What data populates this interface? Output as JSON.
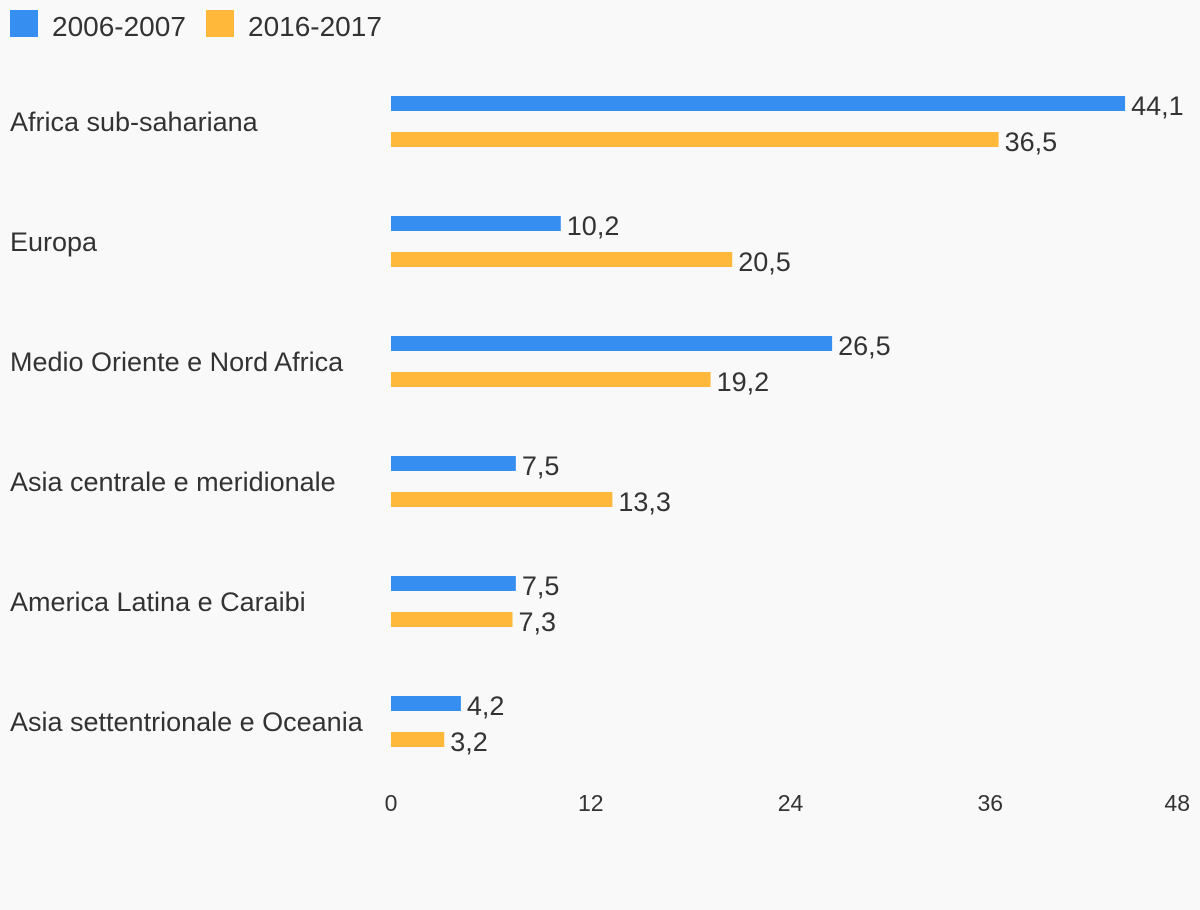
{
  "chart_data": {
    "type": "bar",
    "orientation": "horizontal",
    "title": "",
    "xlabel": "",
    "ylabel": "",
    "xlim": [
      0,
      48
    ],
    "x_ticks": [
      0,
      12,
      24,
      36,
      48
    ],
    "grid": false,
    "legend_position": "top-left",
    "categories": [
      "Africa sub-sahariana",
      "Europa",
      "Medio Oriente e Nord Africa",
      "Asia centrale e meridionale",
      "America Latina e Caraibi",
      "Asia settentrionale e Oceania"
    ],
    "series": [
      {
        "name": "2006-2007",
        "color": "#368ff0",
        "values": [
          44.1,
          10.2,
          26.5,
          7.5,
          7.5,
          4.2
        ],
        "labels": [
          "44,1",
          "10,2",
          "26,5",
          "7,5",
          "7,5",
          "4,2"
        ]
      },
      {
        "name": "2016-2017",
        "color": "#ffb83a",
        "values": [
          36.5,
          20.5,
          19.2,
          13.3,
          7.3,
          3.2
        ],
        "labels": [
          "36,5",
          "20,5",
          "19,2",
          "13,3",
          "7,3",
          "3,2"
        ]
      }
    ]
  }
}
